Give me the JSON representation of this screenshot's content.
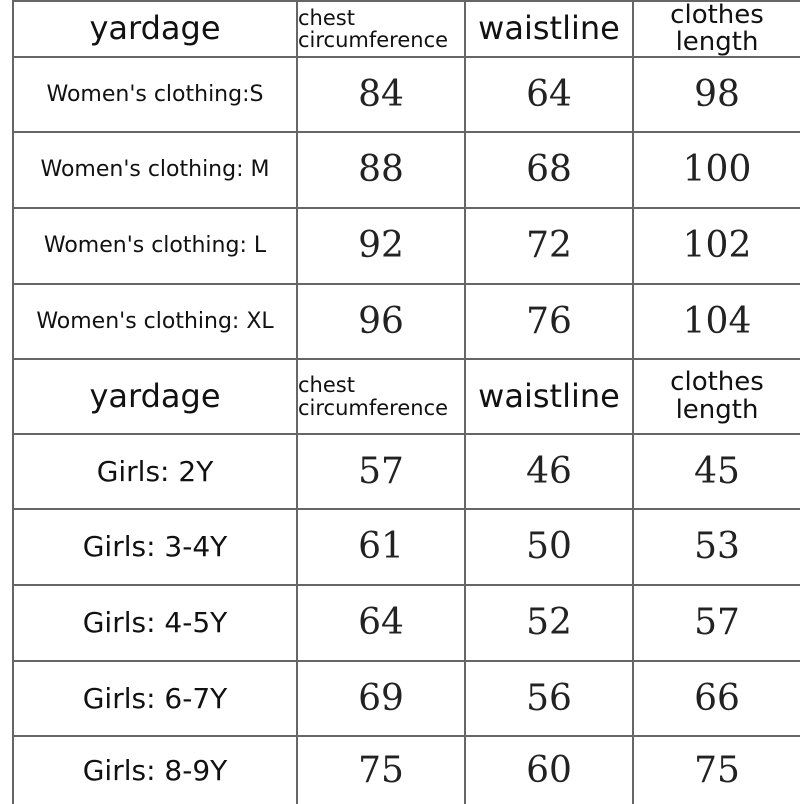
{
  "tables": [
    {
      "header": [
        "yardage",
        "chest circumference",
        "waistline",
        "clothes length"
      ],
      "rows": [
        [
          "Women's clothing:S",
          84,
          64,
          98
        ],
        [
          "Women's clothing: M",
          88,
          68,
          100
        ],
        [
          "Women's clothing: L",
          92,
          72,
          102
        ],
        [
          "Women's clothing: XL",
          96,
          76,
          104
        ]
      ]
    },
    {
      "header": [
        "yardage",
        "chest circumference",
        "waistline",
        "clothes length"
      ],
      "rows": [
        [
          "Girls: 2Y",
          57,
          46,
          45
        ],
        [
          "Girls: 3-4Y",
          61,
          50,
          53
        ],
        [
          "Girls: 4-5Y",
          64,
          52,
          57
        ],
        [
          "Girls: 6-7Y",
          69,
          56,
          66
        ],
        [
          "Girls: 8-9Y",
          75,
          60,
          75
        ]
      ]
    }
  ]
}
